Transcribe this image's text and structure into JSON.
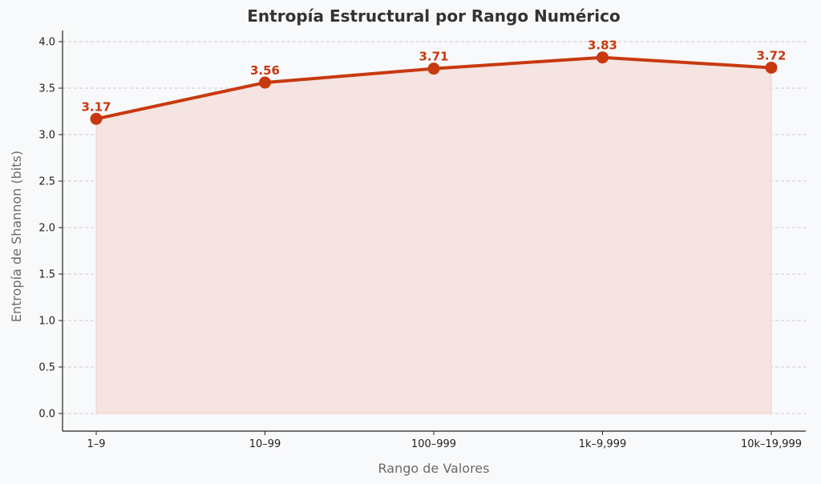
{
  "chart_data": {
    "type": "area",
    "title": "Entropía Estructural por Rango Numérico",
    "xlabel": "Rango de Valores",
    "ylabel": "Entropía de Shannon (bits)",
    "categories": [
      "1–9",
      "10–99",
      "100–999",
      "1k–9,999",
      "10k–19,999"
    ],
    "values": [
      3.17,
      3.56,
      3.71,
      3.83,
      3.72
    ],
    "data_labels": [
      "3.17",
      "3.56",
      "3.71",
      "3.83",
      "3.72"
    ],
    "ylim": [
      0,
      4.0
    ],
    "yticks": [
      "0.0",
      "0.5",
      "1.0",
      "1.5",
      "2.0",
      "2.5",
      "3.0",
      "3.5",
      "4.0"
    ],
    "grid": "horizontal-dashed",
    "legend": "none",
    "colors": {
      "line": "#c8390f",
      "fill": "#f5e4e1",
      "label": "#c8390f",
      "background": "#f8f9fb"
    }
  }
}
